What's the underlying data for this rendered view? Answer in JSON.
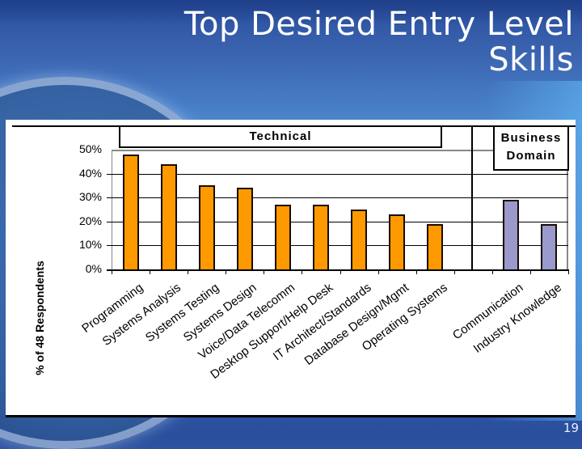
{
  "slide": {
    "title_line1": "Top Desired Entry Level",
    "title_line2": "Skills",
    "page_number": "19"
  },
  "colors": {
    "technical_bar": "#FF9900",
    "business_bar": "#9999CC",
    "bar_border": "#1a0a00"
  },
  "chart_data": {
    "type": "bar",
    "title": "Top Desired Entry Level Skills",
    "xlabel": "",
    "ylabel": "% of 48 Respondents",
    "ylim": [
      0,
      50
    ],
    "yticks": [
      "0%",
      "10%",
      "20%",
      "30%",
      "40%",
      "50%"
    ],
    "grid": true,
    "groups": [
      {
        "name": "Technical",
        "categories": [
          "Programming",
          "Systems Analysis",
          "Systems Testing",
          "Systems Design",
          "Voice/Data Telecomm",
          "Desktop Support/Help Desk",
          "IT Architect/Standards",
          "Database Design/Mgmt",
          "Operating Systems"
        ],
        "color": "#FF9900"
      },
      {
        "name": "Business Domain",
        "categories": [
          "Communication",
          "Industry Knowledge"
        ],
        "color": "#9999CC"
      }
    ],
    "categories": [
      "Programming",
      "Systems Analysis",
      "Systems Testing",
      "Systems Design",
      "Voice/Data Telecomm",
      "Desktop Support/Help Desk",
      "IT Architect/Standards",
      "Database Design/Mgmt",
      "Operating Systems",
      "Communication",
      "Industry Knowledge"
    ],
    "values": [
      48,
      44,
      35,
      34,
      27,
      27,
      25,
      23,
      19,
      29,
      19
    ],
    "group_labels": {
      "technical": "Technical",
      "business_line1": "Business",
      "business_line2": "Domain"
    }
  }
}
